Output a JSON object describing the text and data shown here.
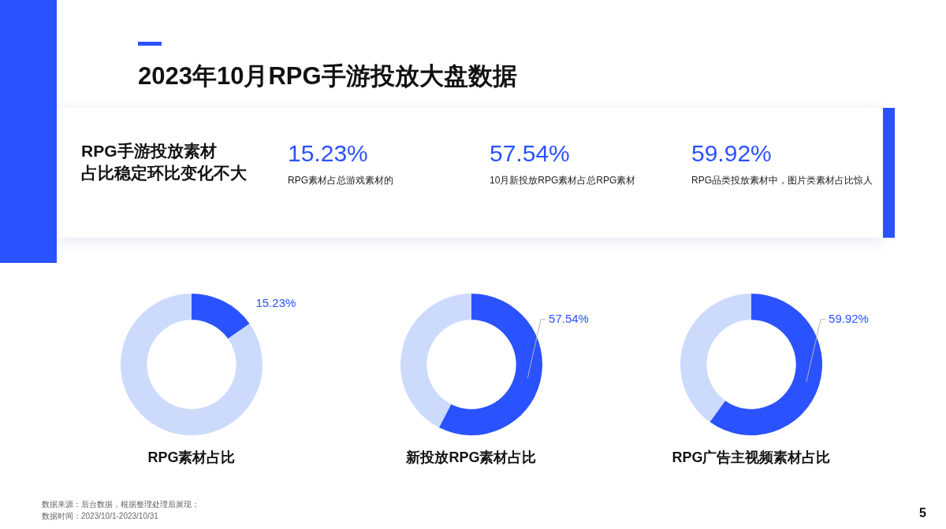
{
  "chart_data": [
    {
      "type": "other",
      "title": "2023年10月RPG手游投放大盘数据",
      "annotations": [
        "RPG手游投放素材占比稳定环比变化不大",
        "15.23%",
        "RPG素材占总游戏素材的",
        "57.54%",
        "10月新投放RPG素材占总RPG素材",
        "59.92%",
        "RPG品类投放素材中，图片类素材占比惊人",
        "数据来源：后台数据，根据整理处理后展现；",
        "数据时间：2023/10/1-2023/10/31",
        "5"
      ]
    },
    {
      "type": "donut",
      "title": "RPG素材占比",
      "categories": [
        null,
        null
      ],
      "values": [
        15.23,
        84.77
      ],
      "colors": [
        "#2b52ff",
        "#ccdafc"
      ],
      "value_labels": [
        "15.23%",
        null
      ]
    },
    {
      "type": "donut",
      "title": "新投放RPG素材占比",
      "categories": [
        null,
        null
      ],
      "values": [
        57.54,
        42.46
      ],
      "colors": [
        "#2b52ff",
        "#ccdafc"
      ],
      "value_labels": [
        "57.54%",
        null
      ]
    },
    {
      "type": "donut",
      "title": "RPG广告主视频素材占比",
      "categories": [
        null,
        null
      ],
      "values": [
        59.92,
        40.08
      ],
      "colors": [
        "#2b52ff",
        "#ccdafc"
      ],
      "value_labels": [
        "59.92%",
        null
      ]
    }
  ]
}
